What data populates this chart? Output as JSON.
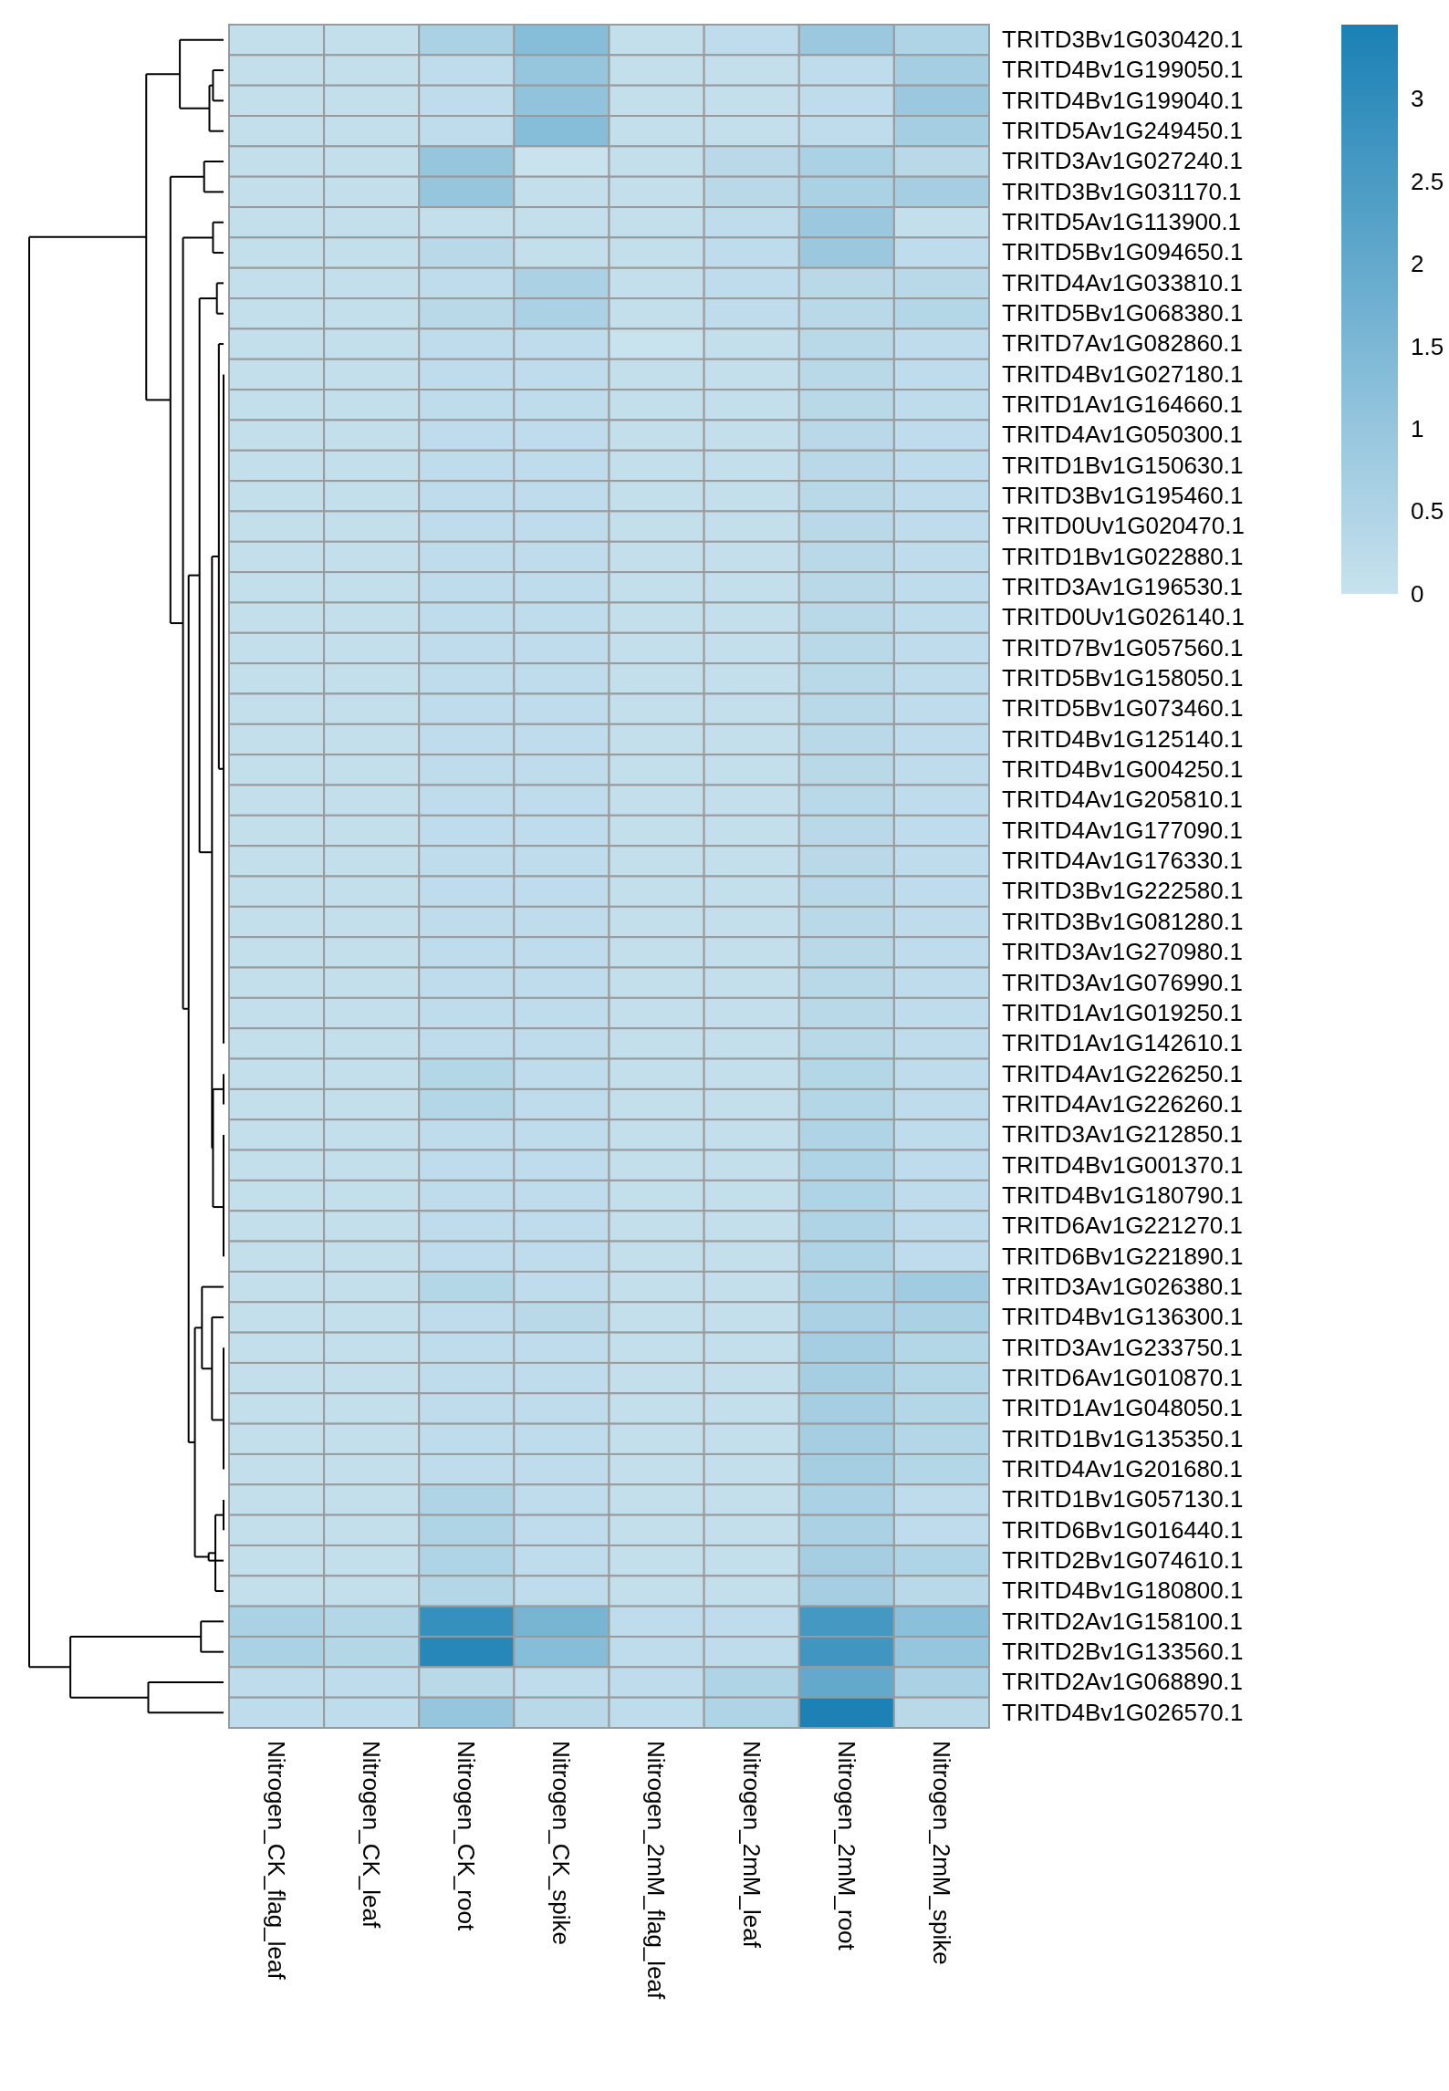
{
  "chart_data": {
    "type": "heatmap",
    "categories": [
      "Nitrogen_CK_flag_leaf",
      "Nitrogen_CK_leaf",
      "Nitrogen_CK_root",
      "Nitrogen_CK_spike",
      "Nitrogen_2mM_flag_leaf",
      "Nitrogen_2mM_leaf",
      "Nitrogen_2mM_root",
      "Nitrogen_2mM_spike"
    ],
    "y_categories": [
      "TRITD3Bv1G030420.1",
      "TRITD4Bv1G199050.1",
      "TRITD4Bv1G199040.1",
      "TRITD5Av1G249450.1",
      "TRITD3Av1G027240.1",
      "TRITD3Bv1G031170.1",
      "TRITD5Av1G113900.1",
      "TRITD5Bv1G094650.1",
      "TRITD4Av1G033810.1",
      "TRITD5Bv1G068380.1",
      "TRITD7Av1G082860.1",
      "TRITD4Bv1G027180.1",
      "TRITD1Av1G164660.1",
      "TRITD4Av1G050300.1",
      "TRITD1Bv1G150630.1",
      "TRITD3Bv1G195460.1",
      "TRITD0Uv1G020470.1",
      "TRITD1Bv1G022880.1",
      "TRITD3Av1G196530.1",
      "TRITD0Uv1G026140.1",
      "TRITD7Bv1G057560.1",
      "TRITD5Bv1G158050.1",
      "TRITD5Bv1G073460.1",
      "TRITD4Bv1G125140.1",
      "TRITD4Bv1G004250.1",
      "TRITD4Av1G205810.1",
      "TRITD4Av1G177090.1",
      "TRITD4Av1G176330.1",
      "TRITD3Bv1G222580.1",
      "TRITD3Bv1G081280.1",
      "TRITD3Av1G270980.1",
      "TRITD3Av1G076990.1",
      "TRITD1Av1G019250.1",
      "TRITD1Av1G142610.1",
      "TRITD4Av1G226250.1",
      "TRITD4Av1G226260.1",
      "TRITD3Av1G212850.1",
      "TRITD4Bv1G001370.1",
      "TRITD4Bv1G180790.1",
      "TRITD6Av1G221270.1",
      "TRITD6Bv1G221890.1",
      "TRITD3Av1G026380.1",
      "TRITD4Bv1G136300.1",
      "TRITD3Av1G233750.1",
      "TRITD6Av1G010870.1",
      "TRITD1Av1G048050.1",
      "TRITD1Bv1G135350.1",
      "TRITD4Av1G201680.1",
      "TRITD1Bv1G057130.1",
      "TRITD6Bv1G016440.1",
      "TRITD2Bv1G074610.1",
      "TRITD4Bv1G180800.1",
      "TRITD2Av1G158100.1",
      "TRITD2Bv1G133560.1",
      "TRITD2Av1G068890.1",
      "TRITD4Bv1G026570.1"
    ],
    "cells": [
      [
        0.1,
        0.1,
        0.6,
        1.3,
        0.1,
        0.2,
        0.9,
        0.5
      ],
      [
        0.1,
        0.1,
        0.2,
        1.0,
        0.1,
        0.1,
        0.2,
        0.7
      ],
      [
        0.1,
        0.1,
        0.2,
        1.1,
        0.1,
        0.1,
        0.2,
        0.9
      ],
      [
        0.1,
        0.1,
        0.2,
        1.3,
        0.1,
        0.1,
        0.2,
        0.7
      ],
      [
        0.1,
        0.1,
        1.0,
        0.0,
        0.1,
        0.3,
        0.6,
        0.3
      ],
      [
        0.1,
        0.1,
        1.0,
        0.1,
        0.1,
        0.3,
        0.6,
        0.7
      ],
      [
        0.1,
        0.1,
        0.1,
        0.1,
        0.1,
        0.2,
        0.9,
        0.1
      ],
      [
        0.1,
        0.1,
        0.3,
        0.1,
        0.1,
        0.2,
        0.9,
        0.2
      ],
      [
        0.1,
        0.1,
        0.2,
        0.6,
        0.1,
        0.2,
        0.3,
        0.3
      ],
      [
        0.1,
        0.1,
        0.3,
        0.6,
        0.1,
        0.2,
        0.3,
        0.4
      ],
      [
        0.1,
        0.1,
        0.2,
        0.2,
        0.0,
        0.1,
        0.3,
        0.2
      ],
      [
        0.1,
        0.1,
        0.2,
        0.2,
        0.1,
        0.1,
        0.3,
        0.2
      ],
      [
        0.1,
        0.1,
        0.2,
        0.2,
        0.1,
        0.1,
        0.3,
        0.2
      ],
      [
        0.1,
        0.1,
        0.2,
        0.2,
        0.1,
        0.1,
        0.3,
        0.2
      ],
      [
        0.1,
        0.1,
        0.2,
        0.2,
        0.1,
        0.1,
        0.3,
        0.2
      ],
      [
        0.1,
        0.1,
        0.2,
        0.2,
        0.1,
        0.1,
        0.3,
        0.2
      ],
      [
        0.1,
        0.1,
        0.2,
        0.2,
        0.1,
        0.1,
        0.3,
        0.2
      ],
      [
        0.1,
        0.1,
        0.2,
        0.2,
        0.1,
        0.1,
        0.3,
        0.2
      ],
      [
        0.1,
        0.1,
        0.2,
        0.2,
        0.1,
        0.1,
        0.3,
        0.2
      ],
      [
        0.1,
        0.1,
        0.2,
        0.2,
        0.1,
        0.1,
        0.3,
        0.2
      ],
      [
        0.1,
        0.1,
        0.2,
        0.2,
        0.1,
        0.1,
        0.3,
        0.2
      ],
      [
        0.1,
        0.1,
        0.2,
        0.2,
        0.1,
        0.1,
        0.3,
        0.2
      ],
      [
        0.1,
        0.1,
        0.2,
        0.2,
        0.1,
        0.1,
        0.3,
        0.2
      ],
      [
        0.1,
        0.1,
        0.2,
        0.2,
        0.1,
        0.1,
        0.3,
        0.2
      ],
      [
        0.1,
        0.1,
        0.2,
        0.2,
        0.1,
        0.1,
        0.3,
        0.2
      ],
      [
        0.1,
        0.1,
        0.2,
        0.2,
        0.1,
        0.1,
        0.3,
        0.2
      ],
      [
        0.1,
        0.1,
        0.2,
        0.2,
        0.1,
        0.1,
        0.3,
        0.2
      ],
      [
        0.1,
        0.1,
        0.2,
        0.2,
        0.1,
        0.1,
        0.3,
        0.2
      ],
      [
        0.1,
        0.1,
        0.2,
        0.2,
        0.1,
        0.1,
        0.3,
        0.2
      ],
      [
        0.1,
        0.1,
        0.2,
        0.2,
        0.1,
        0.1,
        0.3,
        0.2
      ],
      [
        0.1,
        0.1,
        0.2,
        0.2,
        0.1,
        0.1,
        0.3,
        0.2
      ],
      [
        0.1,
        0.1,
        0.2,
        0.2,
        0.1,
        0.1,
        0.3,
        0.2
      ],
      [
        0.1,
        0.1,
        0.2,
        0.2,
        0.1,
        0.1,
        0.3,
        0.2
      ],
      [
        0.1,
        0.1,
        0.2,
        0.2,
        0.1,
        0.1,
        0.3,
        0.2
      ],
      [
        0.1,
        0.1,
        0.4,
        0.2,
        0.1,
        0.1,
        0.4,
        0.2
      ],
      [
        0.1,
        0.1,
        0.4,
        0.2,
        0.1,
        0.1,
        0.4,
        0.2
      ],
      [
        0.1,
        0.1,
        0.2,
        0.2,
        0.1,
        0.1,
        0.5,
        0.2
      ],
      [
        0.1,
        0.1,
        0.2,
        0.2,
        0.1,
        0.1,
        0.5,
        0.2
      ],
      [
        0.1,
        0.1,
        0.2,
        0.2,
        0.1,
        0.1,
        0.5,
        0.2
      ],
      [
        0.1,
        0.1,
        0.2,
        0.2,
        0.1,
        0.1,
        0.5,
        0.2
      ],
      [
        0.1,
        0.1,
        0.2,
        0.2,
        0.1,
        0.1,
        0.5,
        0.2
      ],
      [
        0.1,
        0.1,
        0.4,
        0.2,
        0.1,
        0.1,
        0.6,
        0.8
      ],
      [
        0.1,
        0.1,
        0.2,
        0.3,
        0.1,
        0.1,
        0.6,
        0.6
      ],
      [
        0.1,
        0.1,
        0.2,
        0.2,
        0.1,
        0.1,
        0.7,
        0.4
      ],
      [
        0.1,
        0.1,
        0.2,
        0.2,
        0.1,
        0.1,
        0.7,
        0.4
      ],
      [
        0.1,
        0.1,
        0.2,
        0.2,
        0.1,
        0.1,
        0.7,
        0.4
      ],
      [
        0.1,
        0.1,
        0.2,
        0.2,
        0.1,
        0.1,
        0.7,
        0.4
      ],
      [
        0.1,
        0.1,
        0.2,
        0.2,
        0.1,
        0.1,
        0.7,
        0.4
      ],
      [
        0.1,
        0.1,
        0.5,
        0.2,
        0.1,
        0.1,
        0.6,
        0.2
      ],
      [
        0.1,
        0.1,
        0.5,
        0.2,
        0.1,
        0.1,
        0.6,
        0.2
      ],
      [
        0.1,
        0.1,
        0.5,
        0.2,
        0.1,
        0.1,
        0.7,
        0.5
      ],
      [
        0.1,
        0.1,
        0.4,
        0.2,
        0.1,
        0.1,
        0.7,
        0.3
      ],
      [
        0.6,
        0.4,
        2.9,
        1.6,
        0.2,
        0.2,
        2.6,
        1.2
      ],
      [
        0.6,
        0.4,
        3.2,
        1.3,
        0.2,
        0.2,
        2.7,
        1.0
      ],
      [
        0.2,
        0.2,
        0.3,
        0.2,
        0.2,
        0.5,
        2.0,
        0.6
      ],
      [
        0.2,
        0.2,
        1.0,
        0.3,
        0.2,
        0.5,
        3.4,
        0.3
      ]
    ],
    "clim": [
      0,
      3.45
    ],
    "cticks": [
      0,
      0.5,
      1,
      1.5,
      2,
      2.5,
      3
    ]
  }
}
